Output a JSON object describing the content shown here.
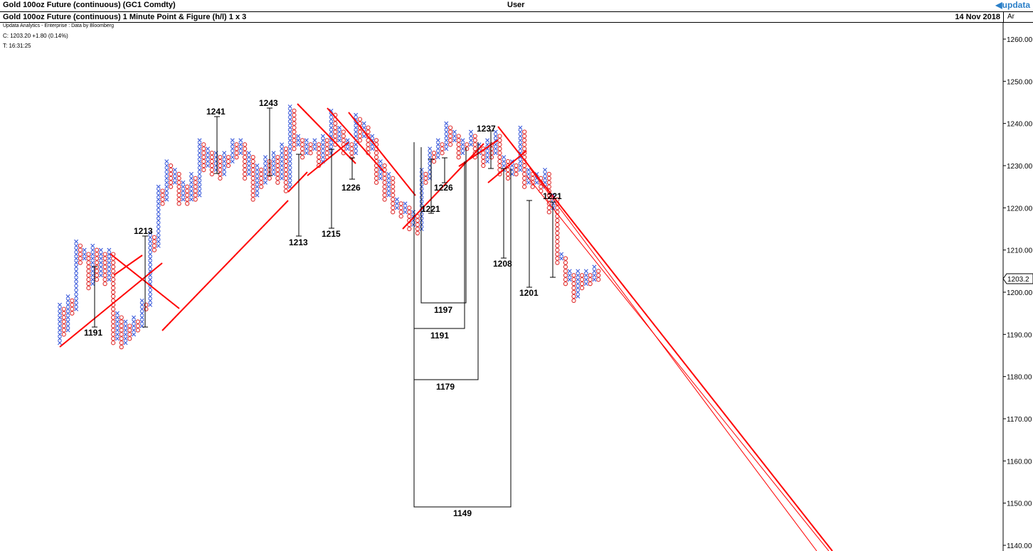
{
  "header": {
    "title": "Gold 100oz Future (continuous) (GC1 Comdty)",
    "user": "User",
    "logo": "updata",
    "logo_icon": "triangle-left-icon",
    "subtitle": "Gold 100oz Future (continuous) 1 Minute Point & Figure (h/l) 1 x 3",
    "date": "14 Nov 2018",
    "axis_menu": "Ar",
    "source": "Updata Analytics - Enterprise : Data by Bloomberg",
    "close_line": "C: 1203.20  +1.80 (0.14%)",
    "time_line": "T: 16:31:25"
  },
  "colors": {
    "x_color": "#3b5bdb",
    "o_color": "#e03131",
    "trendline": "#ff0000",
    "axis": "#000000"
  },
  "chart_data": {
    "type": "point-and-figure",
    "box_size": 1,
    "reversal": 3,
    "y_axis": {
      "min": 1140,
      "max": 1260,
      "ticks": [
        "1140.00",
        "1150.00",
        "1160.00",
        "1170.00",
        "1180.00",
        "1190.00",
        "1200.00",
        "1210.00",
        "1220.00",
        "1230.00",
        "1240.00",
        "1250.00",
        "1260.00"
      ],
      "last_price_label": "1203.2",
      "last_price": 1203.2
    },
    "price_annotations": [
      {
        "label": "1191",
        "value": 1191
      },
      {
        "label": "1213",
        "value": 1213
      },
      {
        "label": "1241",
        "value": 1241
      },
      {
        "label": "1243",
        "value": 1243
      },
      {
        "label": "1213",
        "value": 1213
      },
      {
        "label": "1215",
        "value": 1215
      },
      {
        "label": "1226",
        "value": 1226
      },
      {
        "label": "1221",
        "value": 1221
      },
      {
        "label": "1226",
        "value": 1226
      },
      {
        "label": "1237",
        "value": 1237
      },
      {
        "label": "1208",
        "value": 1208
      },
      {
        "label": "1201",
        "value": 1201
      },
      {
        "label": "1221",
        "value": 1221
      },
      {
        "label": "1197",
        "value": 1197
      },
      {
        "label": "1191",
        "value": 1191
      },
      {
        "label": "1179",
        "value": 1179
      },
      {
        "label": "1149",
        "value": 1149
      }
    ],
    "columns": [
      {
        "t": "X",
        "lo": 1188,
        "hi": 1197
      },
      {
        "t": "O",
        "lo": 1190,
        "hi": 1196
      },
      {
        "t": "X",
        "lo": 1191,
        "hi": 1199
      },
      {
        "t": "O",
        "lo": 1195,
        "hi": 1198
      },
      {
        "t": "X",
        "lo": 1196,
        "hi": 1212
      },
      {
        "t": "O",
        "lo": 1207,
        "hi": 1211
      },
      {
        "t": "X",
        "lo": 1208,
        "hi": 1210
      },
      {
        "t": "O",
        "lo": 1201,
        "hi": 1209
      },
      {
        "t": "X",
        "lo": 1202,
        "hi": 1211
      },
      {
        "t": "O",
        "lo": 1203,
        "hi": 1210
      },
      {
        "t": "X",
        "lo": 1204,
        "hi": 1210
      },
      {
        "t": "O",
        "lo": 1202,
        "hi": 1209
      },
      {
        "t": "X",
        "lo": 1203,
        "hi": 1210
      },
      {
        "t": "O",
        "lo": 1188,
        "hi": 1209
      },
      {
        "t": "X",
        "lo": 1189,
        "hi": 1195
      },
      {
        "t": "O",
        "lo": 1187,
        "hi": 1194
      },
      {
        "t": "X",
        "lo": 1188,
        "hi": 1193
      },
      {
        "t": "O",
        "lo": 1189,
        "hi": 1192
      },
      {
        "t": "X",
        "lo": 1190,
        "hi": 1194
      },
      {
        "t": "O",
        "lo": 1191,
        "hi": 1193
      },
      {
        "t": "X",
        "lo": 1192,
        "hi": 1198
      },
      {
        "t": "O",
        "lo": 1196,
        "hi": 1197
      },
      {
        "t": "X",
        "lo": 1197,
        "hi": 1214
      },
      {
        "t": "O",
        "lo": 1210,
        "hi": 1213
      },
      {
        "t": "X",
        "lo": 1211,
        "hi": 1225
      },
      {
        "t": "O",
        "lo": 1221,
        "hi": 1224
      },
      {
        "t": "X",
        "lo": 1222,
        "hi": 1231
      },
      {
        "t": "O",
        "lo": 1225,
        "hi": 1230
      },
      {
        "t": "X",
        "lo": 1226,
        "hi": 1229
      },
      {
        "t": "O",
        "lo": 1221,
        "hi": 1228
      },
      {
        "t": "X",
        "lo": 1222,
        "hi": 1226
      },
      {
        "t": "O",
        "lo": 1221,
        "hi": 1225
      },
      {
        "t": "X",
        "lo": 1222,
        "hi": 1228
      },
      {
        "t": "O",
        "lo": 1222,
        "hi": 1227
      },
      {
        "t": "X",
        "lo": 1223,
        "hi": 1236
      },
      {
        "t": "O",
        "lo": 1229,
        "hi": 1235
      },
      {
        "t": "X",
        "lo": 1230,
        "hi": 1234
      },
      {
        "t": "O",
        "lo": 1228,
        "hi": 1233
      },
      {
        "t": "X",
        "lo": 1229,
        "hi": 1233
      },
      {
        "t": "O",
        "lo": 1227,
        "hi": 1232
      },
      {
        "t": "X",
        "lo": 1228,
        "hi": 1233
      },
      {
        "t": "O",
        "lo": 1230,
        "hi": 1232
      },
      {
        "t": "X",
        "lo": 1231,
        "hi": 1236
      },
      {
        "t": "O",
        "lo": 1232,
        "hi": 1235
      },
      {
        "t": "X",
        "lo": 1233,
        "hi": 1236
      },
      {
        "t": "O",
        "lo": 1227,
        "hi": 1235
      },
      {
        "t": "X",
        "lo": 1228,
        "hi": 1233
      },
      {
        "t": "O",
        "lo": 1222,
        "hi": 1232
      },
      {
        "t": "X",
        "lo": 1223,
        "hi": 1230
      },
      {
        "t": "O",
        "lo": 1225,
        "hi": 1229
      },
      {
        "t": "X",
        "lo": 1226,
        "hi": 1232
      },
      {
        "t": "O",
        "lo": 1227,
        "hi": 1231
      },
      {
        "t": "X",
        "lo": 1228,
        "hi": 1233
      },
      {
        "t": "O",
        "lo": 1226,
        "hi": 1232
      },
      {
        "t": "X",
        "lo": 1227,
        "hi": 1235
      },
      {
        "t": "O",
        "lo": 1224,
        "hi": 1234
      },
      {
        "t": "X",
        "lo": 1225,
        "hi": 1244
      },
      {
        "t": "O",
        "lo": 1234,
        "hi": 1243
      },
      {
        "t": "X",
        "lo": 1235,
        "hi": 1237
      },
      {
        "t": "O",
        "lo": 1232,
        "hi": 1236
      },
      {
        "t": "X",
        "lo": 1233,
        "hi": 1236
      },
      {
        "t": "O",
        "lo": 1233,
        "hi": 1235
      },
      {
        "t": "X",
        "lo": 1234,
        "hi": 1236
      },
      {
        "t": "O",
        "lo": 1230,
        "hi": 1235
      },
      {
        "t": "X",
        "lo": 1231,
        "hi": 1237
      },
      {
        "t": "O",
        "lo": 1232,
        "hi": 1236
      },
      {
        "t": "X",
        "lo": 1233,
        "hi": 1243
      },
      {
        "t": "O",
        "lo": 1235,
        "hi": 1242
      },
      {
        "t": "X",
        "lo": 1236,
        "hi": 1239
      },
      {
        "t": "O",
        "lo": 1233,
        "hi": 1238
      },
      {
        "t": "X",
        "lo": 1234,
        "hi": 1236
      },
      {
        "t": "O",
        "lo": 1232,
        "hi": 1235
      },
      {
        "t": "X",
        "lo": 1233,
        "hi": 1242
      },
      {
        "t": "O",
        "lo": 1236,
        "hi": 1241
      },
      {
        "t": "X",
        "lo": 1237,
        "hi": 1240
      },
      {
        "t": "O",
        "lo": 1233,
        "hi": 1239
      },
      {
        "t": "X",
        "lo": 1234,
        "hi": 1237
      },
      {
        "t": "O",
        "lo": 1226,
        "hi": 1236
      },
      {
        "t": "X",
        "lo": 1227,
        "hi": 1231
      },
      {
        "t": "O",
        "lo": 1222,
        "hi": 1230
      },
      {
        "t": "X",
        "lo": 1223,
        "hi": 1228
      },
      {
        "t": "O",
        "lo": 1219,
        "hi": 1227
      },
      {
        "t": "X",
        "lo": 1220,
        "hi": 1222
      },
      {
        "t": "O",
        "lo": 1218,
        "hi": 1221
      },
      {
        "t": "X",
        "lo": 1219,
        "hi": 1221
      },
      {
        "t": "O",
        "lo": 1215,
        "hi": 1220
      },
      {
        "t": "X",
        "lo": 1216,
        "hi": 1219
      },
      {
        "t": "O",
        "lo": 1214,
        "hi": 1218
      },
      {
        "t": "X",
        "lo": 1215,
        "hi": 1229
      },
      {
        "t": "O",
        "lo": 1226,
        "hi": 1228
      },
      {
        "t": "X",
        "lo": 1227,
        "hi": 1234
      },
      {
        "t": "O",
        "lo": 1231,
        "hi": 1233
      },
      {
        "t": "X",
        "lo": 1232,
        "hi": 1236
      },
      {
        "t": "O",
        "lo": 1233,
        "hi": 1235
      },
      {
        "t": "X",
        "lo": 1234,
        "hi": 1240
      },
      {
        "t": "O",
        "lo": 1235,
        "hi": 1239
      },
      {
        "t": "X",
        "lo": 1236,
        "hi": 1238
      },
      {
        "t": "O",
        "lo": 1232,
        "hi": 1237
      },
      {
        "t": "X",
        "lo": 1233,
        "hi": 1236
      },
      {
        "t": "O",
        "lo": 1234,
        "hi": 1235
      },
      {
        "t": "X",
        "lo": 1235,
        "hi": 1238
      },
      {
        "t": "O",
        "lo": 1232,
        "hi": 1237
      },
      {
        "t": "X",
        "lo": 1233,
        "hi": 1235
      },
      {
        "t": "O",
        "lo": 1230,
        "hi": 1234
      },
      {
        "t": "X",
        "lo": 1231,
        "hi": 1236
      },
      {
        "t": "O",
        "lo": 1232,
        "hi": 1235
      },
      {
        "t": "X",
        "lo": 1233,
        "hi": 1238
      },
      {
        "t": "O",
        "lo": 1228,
        "hi": 1237
      },
      {
        "t": "X",
        "lo": 1229,
        "hi": 1232
      },
      {
        "t": "O",
        "lo": 1227,
        "hi": 1231
      },
      {
        "t": "X",
        "lo": 1228,
        "hi": 1231
      },
      {
        "t": "O",
        "lo": 1228,
        "hi": 1230
      },
      {
        "t": "X",
        "lo": 1229,
        "hi": 1239
      },
      {
        "t": "O",
        "lo": 1225,
        "hi": 1238
      },
      {
        "t": "X",
        "lo": 1226,
        "hi": 1229
      },
      {
        "t": "O",
        "lo": 1225,
        "hi": 1228
      },
      {
        "t": "X",
        "lo": 1226,
        "hi": 1228
      },
      {
        "t": "O",
        "lo": 1224,
        "hi": 1227
      },
      {
        "t": "X",
        "lo": 1225,
        "hi": 1229
      },
      {
        "t": "O",
        "lo": 1219,
        "hi": 1228
      },
      {
        "t": "X",
        "lo": 1220,
        "hi": 1223
      },
      {
        "t": "O",
        "lo": 1207,
        "hi": 1222
      },
      {
        "t": "X",
        "lo": 1208,
        "hi": 1209
      },
      {
        "t": "O",
        "lo": 1202,
        "hi": 1208
      },
      {
        "t": "X",
        "lo": 1203,
        "hi": 1205
      },
      {
        "t": "O",
        "lo": 1198,
        "hi": 1204
      },
      {
        "t": "X",
        "lo": 1199,
        "hi": 1205
      },
      {
        "t": "O",
        "lo": 1201,
        "hi": 1204
      },
      {
        "t": "X",
        "lo": 1202,
        "hi": 1205
      },
      {
        "t": "O",
        "lo": 1202,
        "hi": 1204
      },
      {
        "t": "X",
        "lo": 1203,
        "hi": 1206
      },
      {
        "t": "O",
        "lo": 1203,
        "hi": 1205
      }
    ]
  }
}
